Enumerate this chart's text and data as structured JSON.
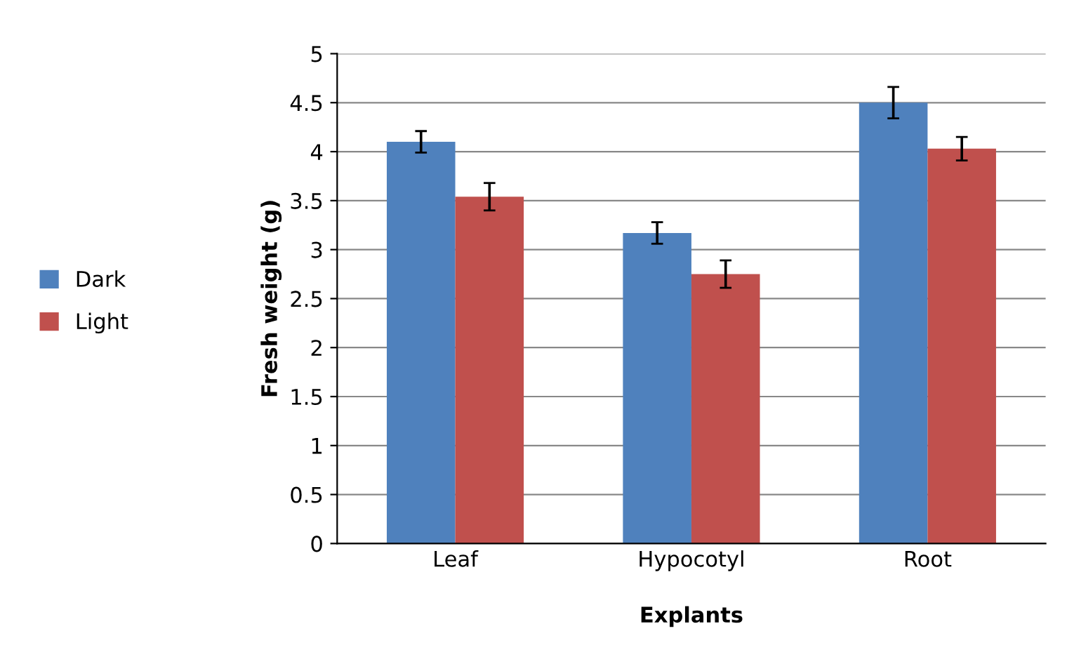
{
  "chart_data": {
    "type": "bar",
    "xlabel": "Explants",
    "ylabel": "Fresh weight (g)",
    "categories": [
      "Leaf",
      "Hypocotyl",
      "Root"
    ],
    "series": [
      {
        "name": "Dark",
        "color": "#4f81bd",
        "values": [
          4.1,
          3.17,
          4.5
        ],
        "errors": [
          0.11,
          0.11,
          0.16
        ]
      },
      {
        "name": "Light",
        "color": "#c0504d",
        "values": [
          3.54,
          2.75,
          4.03
        ],
        "errors": [
          0.14,
          0.14,
          0.12
        ]
      }
    ],
    "ylim": [
      0,
      5
    ],
    "yticks": [
      0,
      0.5,
      1,
      1.5,
      2,
      2.5,
      3,
      3.5,
      4,
      4.5,
      5
    ],
    "grid": "y",
    "legend": "left"
  }
}
